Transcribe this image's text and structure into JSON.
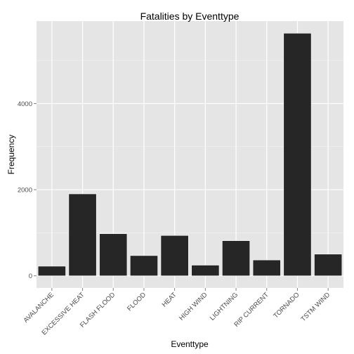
{
  "chart_data": {
    "type": "bar",
    "title": "Fatalities by Eventtype",
    "xlabel": "Eventtype",
    "ylabel": "Frequency",
    "categories": [
      "AVALANCHE",
      "EXCESSIVE HEAT",
      "FLASH FLOOD",
      "FLOOD",
      "HEAT",
      "HIGH WIND",
      "LIGHTNING",
      "RIP CURRENT",
      "TORNADO",
      "TSTM WIND"
    ],
    "values": [
      224,
      1903,
      978,
      470,
      937,
      248,
      816,
      368,
      5633,
      504
    ],
    "y_ticks": [
      0,
      2000,
      4000
    ],
    "y_tick_labels": [
      "0",
      "2000",
      "4000"
    ],
    "ylim": [
      -282,
      5915
    ],
    "grid": true,
    "legend": "none",
    "colors": {
      "panel": "#e5e5e5",
      "grid_major": "#ffffff",
      "grid_minor": "#f2f2f2",
      "bar_fill": "#262626",
      "bar_outline": "#ffffff",
      "tick_label": "#4d4d4d",
      "tick_mark": "#7f7f7f"
    }
  }
}
